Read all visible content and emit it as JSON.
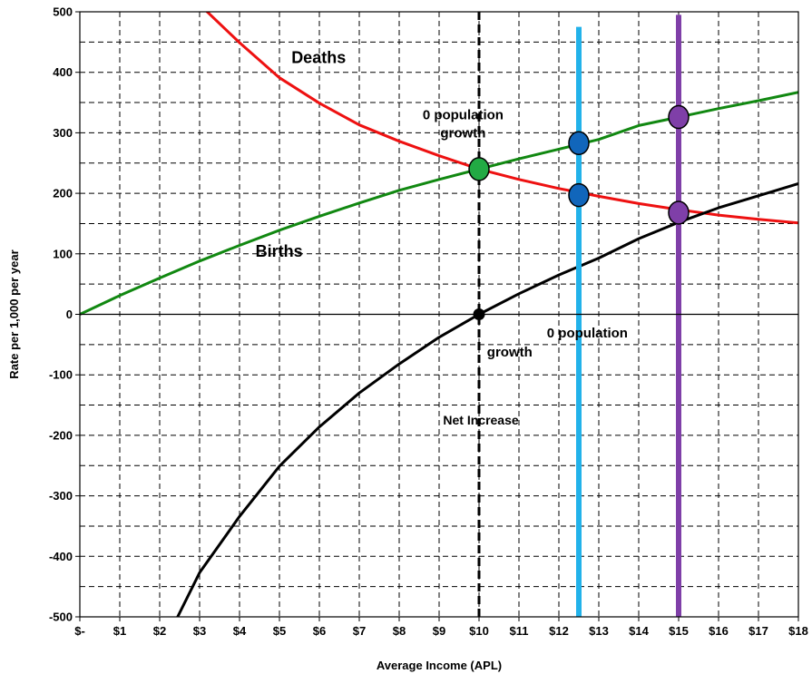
{
  "chart_data": {
    "type": "line",
    "xlabel": "Average Income (APL)",
    "ylabel": "Rate per 1,000 per year",
    "xlim": [
      0,
      18
    ],
    "ylim": [
      -500,
      500
    ],
    "x_tick_labels": [
      "$-",
      "$1",
      "$2",
      "$3",
      "$4",
      "$5",
      "$6",
      "$7",
      "$8",
      "$9",
      "$10",
      "$11",
      "$12",
      "$13",
      "$14",
      "$15",
      "$16",
      "$17",
      "$18"
    ],
    "y_ticks": [
      -500,
      -400,
      -300,
      -200,
      -100,
      0,
      100,
      200,
      300,
      400,
      500
    ],
    "grid": true,
    "series": [
      {
        "name": "Deaths",
        "color": "#ee1111",
        "x": [
          3,
          4,
          5,
          6,
          7,
          8,
          9,
          10,
          11,
          12,
          13,
          14,
          15,
          16,
          17,
          18
        ],
        "values": [
          512,
          449,
          391,
          349,
          313,
          286,
          262,
          240,
          223,
          208,
          195,
          183,
          173,
          164,
          157,
          151
        ]
      },
      {
        "name": "Births",
        "color": "#118811",
        "x": [
          0,
          1,
          2,
          3,
          4,
          5,
          6,
          7,
          8,
          9,
          10,
          11,
          12,
          13,
          14,
          15,
          16,
          17,
          18
        ],
        "values": [
          0,
          31,
          60,
          88,
          114,
          139,
          162,
          184,
          205,
          223,
          240,
          257,
          273,
          289,
          312,
          326,
          340,
          353,
          367
        ]
      },
      {
        "name": "Net Increase",
        "color": "#000000",
        "x": [
          2.3,
          3,
          4,
          5,
          6,
          7,
          8,
          9,
          10,
          11,
          12,
          13,
          14,
          15,
          16,
          17,
          18
        ],
        "values": [
          -520,
          -427,
          -334,
          -251,
          -186,
          -130,
          -82,
          -38,
          0,
          34,
          65,
          93,
          125,
          152,
          176,
          196,
          216
        ]
      }
    ],
    "vertical_lines": [
      {
        "x": 10,
        "color": "#000000",
        "style": "dashed"
      },
      {
        "x": 12.5,
        "color": "#22b2ea",
        "style": "solid",
        "y_top": 475
      },
      {
        "x": 15,
        "color": "#7f3fa8",
        "style": "solid",
        "y_top": 495
      }
    ],
    "markers": [
      {
        "x": 10,
        "y": 240,
        "color": "#22aa44",
        "size": "large"
      },
      {
        "x": 10,
        "y": 0,
        "color": "#000000",
        "size": "small"
      },
      {
        "x": 12.5,
        "y": 283,
        "color": "#1166bb",
        "size": "large"
      },
      {
        "x": 12.5,
        "y": 197,
        "color": "#1166bb",
        "size": "large"
      },
      {
        "x": 15,
        "y": 326,
        "color": "#7f3fa8",
        "size": "large"
      },
      {
        "x": 15,
        "y": 168,
        "color": "#7f3fa8",
        "size": "large"
      }
    ],
    "annotations": [
      {
        "id": "deaths",
        "text": "Deaths",
        "x": 5.3,
        "y": 415,
        "size": 18
      },
      {
        "id": "births",
        "text": "Births",
        "x": 4.4,
        "y": 95,
        "size": 18
      },
      {
        "id": "zpg-top-1",
        "text": "0 population",
        "x": 9.6,
        "y": 322,
        "size": 15
      },
      {
        "id": "zpg-top-2",
        "text": "growth",
        "x": 9.6,
        "y": 292,
        "size": 15
      },
      {
        "id": "zpg-bottom-1",
        "text": "0 population",
        "x": 11.7,
        "y": -38,
        "size": 15
      },
      {
        "id": "zpg-bottom-2",
        "text": "growth",
        "x": 10.2,
        "y": -70,
        "size": 15
      },
      {
        "id": "net-increase",
        "text": "Net Increase",
        "x": 9.1,
        "y": -182,
        "size": 14
      }
    ]
  }
}
